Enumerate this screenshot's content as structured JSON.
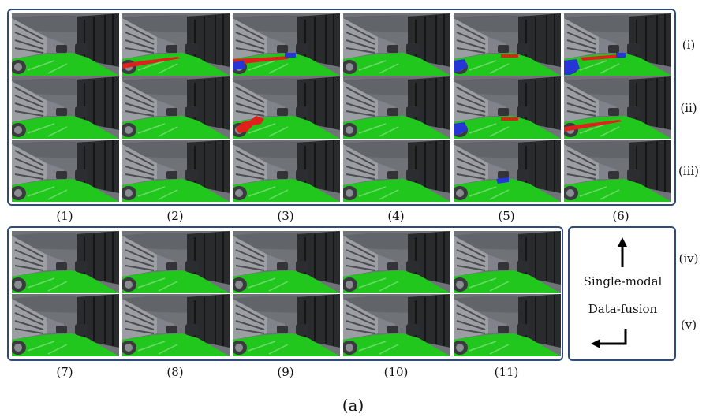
{
  "row_labels": [
    "(i)",
    "(ii)",
    "(iii)",
    "(iv)",
    "(v)"
  ],
  "column_labels": [
    "(1)",
    "(2)",
    "(3)",
    "(4)",
    "(5)",
    "(6)",
    "(7)",
    "(8)",
    "(9)",
    "(10)",
    "(11)"
  ],
  "legend": {
    "single_modal": "Single-modal",
    "data_fusion": "Data-fusion"
  },
  "caption": "(a)",
  "colors": {
    "panel_border": "#2f4a7a",
    "drivable_area": "#22c71e",
    "false_positive": "#e0211b",
    "false_negative": "#2636d6",
    "sky": "#6f7378",
    "building": "#9b9ea2",
    "wall": "#2a2b2d"
  },
  "artifacts": [
    [
      "none",
      "red-left",
      "red-blue",
      "none",
      "blue-left",
      "blue-red"
    ],
    [
      "none",
      "none",
      "red-blob",
      "none",
      "blue-left",
      "red-left"
    ],
    [
      "none",
      "none",
      "none",
      "none",
      "blue-side",
      "none"
    ],
    [
      "none",
      "none",
      "none",
      "none",
      "none"
    ],
    [
      "none",
      "none",
      "none",
      "none",
      "none"
    ]
  ]
}
